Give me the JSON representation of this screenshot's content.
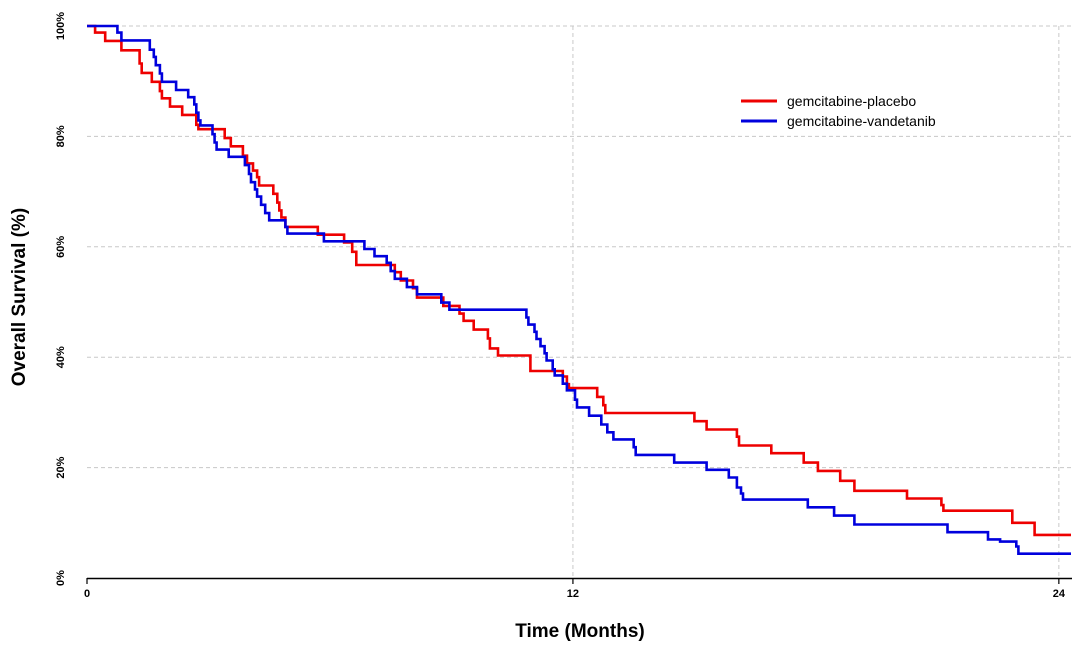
{
  "chart_data": {
    "type": "line",
    "title": "",
    "xlabel": "Time (Months)",
    "ylabel": "Overall Survival (%)",
    "xlim": [
      0,
      24.3
    ],
    "ylim": [
      0,
      100
    ],
    "x_ticks": [
      0,
      12,
      24
    ],
    "x_tick_labels": [
      "0",
      "12",
      "24"
    ],
    "y_ticks": [
      0,
      20,
      40,
      60,
      80,
      100
    ],
    "y_tick_labels": [
      "0%",
      "20%",
      "40%",
      "60%",
      "80%",
      "100%"
    ],
    "grid": true,
    "legend_position": "top-right",
    "series": [
      {
        "name": "gemcitabine-placebo",
        "color": "#ee0000",
        "points": [
          [
            0,
            100
          ],
          [
            0.2,
            98.8
          ],
          [
            0.45,
            97.3
          ],
          [
            0.85,
            95.6
          ],
          [
            1.3,
            93.2
          ],
          [
            1.35,
            91.5
          ],
          [
            1.6,
            89.9
          ],
          [
            1.8,
            88.2
          ],
          [
            1.85,
            86.9
          ],
          [
            2.05,
            85.4
          ],
          [
            2.35,
            83.9
          ],
          [
            2.7,
            82.1
          ],
          [
            2.75,
            81.3
          ],
          [
            3.4,
            79.7
          ],
          [
            3.55,
            78.2
          ],
          [
            3.85,
            76.5
          ],
          [
            3.95,
            75.1
          ],
          [
            4.1,
            73.8
          ],
          [
            4.2,
            72.6
          ],
          [
            4.25,
            71.1
          ],
          [
            4.6,
            69.6
          ],
          [
            4.7,
            68.0
          ],
          [
            4.75,
            66.6
          ],
          [
            4.8,
            65.3
          ],
          [
            4.9,
            63.6
          ],
          [
            5.7,
            62.2
          ],
          [
            6.35,
            60.8
          ],
          [
            6.55,
            59.1
          ],
          [
            6.65,
            56.7
          ],
          [
            7.6,
            55.4
          ],
          [
            7.75,
            53.9
          ],
          [
            8.05,
            52.5
          ],
          [
            8.15,
            50.8
          ],
          [
            8.8,
            49.3
          ],
          [
            9.2,
            47.9
          ],
          [
            9.3,
            46.6
          ],
          [
            9.55,
            45.0
          ],
          [
            9.9,
            43.4
          ],
          [
            9.95,
            41.6
          ],
          [
            10.15,
            40.3
          ],
          [
            10.95,
            37.5
          ],
          [
            11.75,
            36.5
          ],
          [
            11.85,
            35.1
          ],
          [
            11.9,
            34.4
          ],
          [
            12.6,
            32.8
          ],
          [
            12.75,
            31.3
          ],
          [
            12.8,
            29.9
          ],
          [
            15.0,
            28.4
          ],
          [
            15.3,
            26.9
          ],
          [
            16.05,
            25.6
          ],
          [
            16.1,
            24.0
          ],
          [
            16.9,
            22.6
          ],
          [
            17.7,
            20.9
          ],
          [
            18.05,
            19.4
          ],
          [
            18.6,
            17.6
          ],
          [
            18.95,
            15.8
          ],
          [
            20.25,
            14.4
          ],
          [
            21.1,
            13.2
          ],
          [
            21.15,
            12.2
          ],
          [
            22.85,
            10.0
          ],
          [
            23.4,
            7.8
          ],
          [
            24.3,
            7.8
          ]
        ]
      },
      {
        "name": "gemcitabine-vandetanib",
        "color": "#0000dd",
        "points": [
          [
            0,
            100
          ],
          [
            0.75,
            98.8
          ],
          [
            0.85,
            97.4
          ],
          [
            1.55,
            95.7
          ],
          [
            1.65,
            94.4
          ],
          [
            1.7,
            92.9
          ],
          [
            1.8,
            91.4
          ],
          [
            1.85,
            89.9
          ],
          [
            2.2,
            88.4
          ],
          [
            2.5,
            87.1
          ],
          [
            2.65,
            85.8
          ],
          [
            2.7,
            84.3
          ],
          [
            2.75,
            82.9
          ],
          [
            2.8,
            82.0
          ],
          [
            3.1,
            80.4
          ],
          [
            3.15,
            78.9
          ],
          [
            3.2,
            77.6
          ],
          [
            3.5,
            76.3
          ],
          [
            3.9,
            74.8
          ],
          [
            4.0,
            73.2
          ],
          [
            4.05,
            71.7
          ],
          [
            4.15,
            70.4
          ],
          [
            4.2,
            69.1
          ],
          [
            4.3,
            67.6
          ],
          [
            4.4,
            66.1
          ],
          [
            4.5,
            64.8
          ],
          [
            4.9,
            63.6
          ],
          [
            4.95,
            62.4
          ],
          [
            5.85,
            61.0
          ],
          [
            6.85,
            59.6
          ],
          [
            7.1,
            58.3
          ],
          [
            7.4,
            57.1
          ],
          [
            7.5,
            55.6
          ],
          [
            7.6,
            54.2
          ],
          [
            7.9,
            52.7
          ],
          [
            8.15,
            51.4
          ],
          [
            8.75,
            49.9
          ],
          [
            8.95,
            48.6
          ],
          [
            10.85,
            47.2
          ],
          [
            10.9,
            45.9
          ],
          [
            11.05,
            44.6
          ],
          [
            11.1,
            43.3
          ],
          [
            11.2,
            42.0
          ],
          [
            11.3,
            40.7
          ],
          [
            11.35,
            39.4
          ],
          [
            11.5,
            37.8
          ],
          [
            11.55,
            36.7
          ],
          [
            11.75,
            35.2
          ],
          [
            11.85,
            34.0
          ],
          [
            12.05,
            32.3
          ],
          [
            12.1,
            30.9
          ],
          [
            12.4,
            29.4
          ],
          [
            12.7,
            27.8
          ],
          [
            12.85,
            26.4
          ],
          [
            13.0,
            25.1
          ],
          [
            13.5,
            23.7
          ],
          [
            13.55,
            22.3
          ],
          [
            14.5,
            20.9
          ],
          [
            15.3,
            19.6
          ],
          [
            15.85,
            18.2
          ],
          [
            16.05,
            16.4
          ],
          [
            16.15,
            15.3
          ],
          [
            16.2,
            14.2
          ],
          [
            17.8,
            12.8
          ],
          [
            18.45,
            11.3
          ],
          [
            18.95,
            9.7
          ],
          [
            21.25,
            8.3
          ],
          [
            22.25,
            7.0
          ],
          [
            22.55,
            6.6
          ],
          [
            22.95,
            5.7
          ],
          [
            23.0,
            4.4
          ],
          [
            24.3,
            4.4
          ]
        ]
      }
    ]
  }
}
